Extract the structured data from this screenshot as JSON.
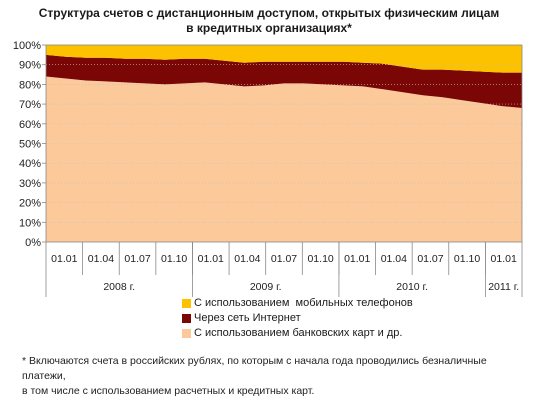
{
  "title_line1": "Структура счетов с дистанционным доступом, открытых физическим лицам",
  "title_line2": "в кредитных организациях*",
  "footnote_line1": "* Включаются счета в российских рублях, по которым с начала года проводились безналичные платежи,",
  "footnote_line2": "в том числе с использованием расчетных и кредитных карт.",
  "chart_data": {
    "type": "area",
    "stacked": true,
    "title": "Структура счетов с дистанционным доступом, открытых физическим лицам в кредитных организациях*",
    "y_ticks": [
      "0%",
      "10%",
      "20%",
      "30%",
      "40%",
      "50%",
      "60%",
      "70%",
      "80%",
      "90%",
      "100%"
    ],
    "ylim": [
      0,
      100
    ],
    "x_tick_labels": [
      "01.01",
      "01.04",
      "01.07",
      "01.10",
      "01.01",
      "01.04",
      "01.07",
      "01.10",
      "01.01",
      "01.04",
      "01.07",
      "01.10",
      "01.01"
    ],
    "year_labels": [
      "2008 г.",
      "2009 г.",
      "2010 г.",
      "2011 г."
    ],
    "x": [
      0,
      0.5,
      1,
      1.5,
      2,
      2.5,
      3,
      3.5,
      4,
      4.5,
      5,
      5.5,
      6,
      6.5,
      7,
      7.5,
      8,
      8.5,
      9,
      9.5,
      10,
      10.5,
      11,
      11.5,
      12
    ],
    "legend_position": "bottom",
    "series": [
      {
        "name": "С использованием банковских карт и др.",
        "color": "#fcc99b",
        "values": [
          84,
          83,
          82,
          81.5,
          81,
          80.5,
          80,
          80.5,
          81,
          80,
          79,
          79.5,
          80.5,
          80.5,
          80,
          79.5,
          79,
          77.5,
          76,
          74.5,
          73.5,
          72,
          70.5,
          69,
          68
        ]
      },
      {
        "name": "Через сеть Интернет",
        "color": "#7b0606",
        "values": [
          11,
          11,
          11.5,
          12,
          12,
          12.5,
          12.5,
          12.5,
          12,
          12,
          12,
          12,
          11,
          11,
          11.5,
          12,
          12,
          13,
          13,
          13,
          14,
          15,
          16,
          17,
          18
        ]
      },
      {
        "name": "С использованием  мобильных телефонов",
        "color": "#fcc200",
        "values": [
          5,
          6,
          6.5,
          6.5,
          7,
          7,
          7.5,
          7,
          7,
          8,
          9,
          8.5,
          8.5,
          8.5,
          8.5,
          8.5,
          9,
          9.5,
          11,
          12.5,
          12.5,
          13,
          13.5,
          14,
          14
        ]
      }
    ],
    "legend_order": [
      2,
      1,
      0
    ],
    "grid": true
  }
}
